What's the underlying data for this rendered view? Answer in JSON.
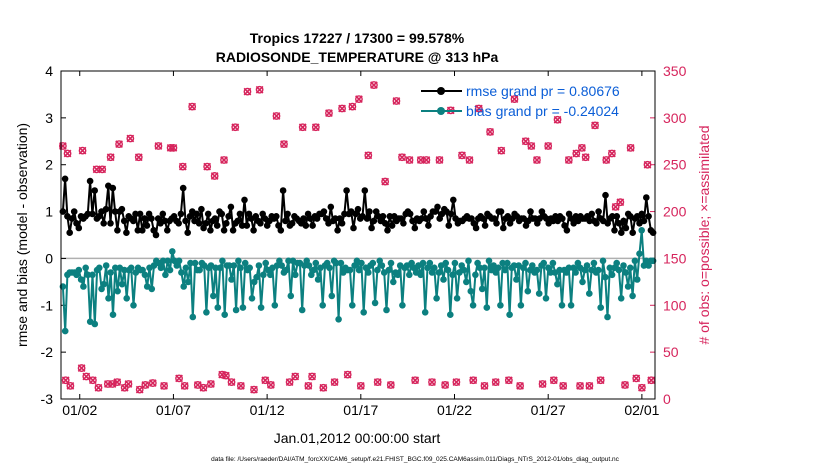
{
  "chart_data": {
    "type": "line",
    "title_line1": "Tropics 17227 / 17300 = 99.578%",
    "title_line2": "RADIOSONDE_TEMPERATURE @ 313 hPa",
    "xlabel": "Jan.01,2012 00:00:00 start",
    "ylabel_left": "rmse and bias (model - observation)",
    "ylabel_right": "# of obs: o=possible; ×=assimilated",
    "footer": "data file: /Users/raeder/DAI/ATM_forcXX/CAM6_setup/f.e21.FHIST_BGC.f09_025.CAM6assim.011/Diags_NTrS_2012-01/obs_diag_output.nc",
    "xlim": [
      0,
      31.7
    ],
    "ylim_left": [
      -3,
      4
    ],
    "ylim_right": [
      0,
      350
    ],
    "x_ticks": [
      {
        "value": 1,
        "label": "01/02"
      },
      {
        "value": 6,
        "label": "01/07"
      },
      {
        "value": 11,
        "label": "01/12"
      },
      {
        "value": 16,
        "label": "01/17"
      },
      {
        "value": 21,
        "label": "01/22"
      },
      {
        "value": 26,
        "label": "01/27"
      },
      {
        "value": 31,
        "label": "02/01"
      }
    ],
    "y_left_ticks": [
      "-3",
      "-2",
      "-1",
      "0",
      "1",
      "2",
      "3",
      "4"
    ],
    "y_right_ticks": [
      "0",
      "50",
      "100",
      "150",
      "200",
      "250",
      "300",
      "350"
    ],
    "legend": [
      {
        "label": "rmse grand pr = 0.80676",
        "color": "#000000"
      },
      {
        "label": "bias grand pr = -0.24024",
        "color": "#008080"
      }
    ],
    "legend_text_color": "#0b5ed7",
    "colors": {
      "rmse": "#000000",
      "bias": "#0c8080",
      "counts": "#d6245c",
      "zero_line": "#b0b0b0"
    },
    "rmse": [
      1.0,
      1.7,
      0.9,
      0.55,
      0.85,
      1.0,
      0.75,
      0.65,
      0.9,
      0.85,
      0.9,
      0.95,
      1.65,
      0.95,
      1.45,
      0.85,
      0.9,
      1.0,
      0.75,
      1.05,
      1.55,
      0.75,
      1.5,
      1.0,
      0.6,
      1.0,
      1.05,
      0.8,
      0.55,
      0.9,
      0.85,
      0.8,
      0.95,
      0.6,
      0.95,
      0.6,
      0.85,
      0.7,
      0.95,
      0.85,
      0.6,
      0.5,
      0.85,
      0.75,
      0.95,
      0.8,
      0.6,
      0.8,
      0.85,
      0.9,
      0.8,
      0.75,
      0.95,
      1.5,
      0.8,
      0.55,
      0.9,
      1.0,
      0.8,
      0.95,
      0.75,
      1.05,
      0.65,
      0.75,
      0.95,
      0.6,
      0.8,
      0.85,
      0.7,
      1.0,
      0.95,
      0.6,
      0.75,
      0.9,
      1.1,
      0.6,
      0.75,
      0.8,
      0.95,
      0.7,
      1.25,
      0.7,
      0.95,
      0.85,
      0.6,
      0.9,
      0.8,
      0.75,
      0.95,
      0.85,
      0.7,
      0.8,
      0.9,
      0.85,
      0.9,
      0.7,
      0.6,
      1.45,
      0.8,
      0.95,
      0.7,
      0.75,
      0.9,
      0.85,
      0.8,
      0.75,
      0.85,
      0.7,
      0.95,
      0.85,
      0.7,
      0.9,
      0.85,
      0.95,
      0.95,
      1.0,
      0.85,
      0.75,
      1.1,
      0.8,
      0.85,
      0.6,
      0.85,
      0.75,
      0.95,
      1.45,
      0.95,
      1.0,
      0.65,
      0.95,
      1.05,
      0.85,
      0.9,
      1.45,
      0.85,
      1.0,
      0.65,
      0.8,
      1.0,
      0.9,
      0.8,
      0.9,
      0.75,
      0.6,
      0.9,
      0.7,
      0.9,
      0.8,
      0.85,
      0.85,
      0.75,
      0.95,
      1.0,
      0.95,
      0.8,
      0.65,
      0.85,
      0.8,
      0.85,
      1.0,
      0.85,
      0.7,
      0.9,
      1.0,
      1.0,
      1.1,
      0.85,
      0.95,
      1.05,
      1.0,
      0.7,
      0.95,
      1.25,
      0.85,
      0.75,
      0.8,
      0.8,
      0.85,
      0.9,
      0.85,
      0.85,
      0.75,
      0.65,
      0.85,
      0.9,
      0.85,
      0.7,
      0.95,
      0.9,
      0.85,
      0.85,
      0.75,
      1.0,
      1.0,
      0.65,
      0.85,
      0.9,
      0.75,
      0.85,
      0.95,
      0.9,
      0.8,
      0.85,
      0.85,
      0.7,
      0.8,
      1.0,
      0.85,
      0.85,
      0.75,
      0.85,
      1.0,
      0.9,
      0.85,
      0.75,
      0.85,
      0.8,
      0.9,
      0.8,
      0.9,
      0.85,
      0.7,
      0.6,
      0.95,
      0.85,
      0.75,
      0.9,
      0.8,
      0.9,
      0.85,
      0.85,
      0.9,
      0.8,
      0.95,
      0.8,
      0.75,
      1.0,
      0.85,
      0.8,
      1.35,
      0.75,
      0.85,
      0.9,
      0.6,
      0.9,
      0.75,
      0.55,
      0.8,
      0.65,
      0.95,
      0.9,
      0.55,
      0.85,
      0.9,
      0.75,
      0.95,
      0.8,
      1.3,
      0.9,
      0.6,
      0.55
    ],
    "bias": [
      -0.6,
      -1.55,
      -0.35,
      -0.3,
      -0.3,
      -0.3,
      -0.35,
      -0.25,
      -0.45,
      -0.6,
      -0.2,
      -0.35,
      -1.35,
      -0.35,
      -1.4,
      -0.25,
      -0.2,
      -0.65,
      -0.55,
      -0.15,
      -0.85,
      -0.3,
      -1.2,
      -0.2,
      -0.7,
      -0.2,
      -0.55,
      -0.25,
      -0.85,
      -0.25,
      -0.2,
      -1.0,
      -0.3,
      -0.2,
      -0.25,
      -0.25,
      -0.35,
      -0.6,
      -0.2,
      -0.65,
      -0.15,
      -0.05,
      -0.1,
      -0.2,
      -0.05,
      -0.35,
      -0.05,
      -0.25,
      0.15,
      -0.05,
      -0.15,
      -0.05,
      -0.3,
      -0.6,
      -0.2,
      -0.5,
      -0.1,
      -1.25,
      -0.1,
      -0.25,
      -0.25,
      -0.1,
      -0.15,
      -1.15,
      -0.2,
      -0.15,
      -0.8,
      -0.2,
      -1.05,
      -0.2,
      -0.05,
      -1.2,
      -0.15,
      -0.15,
      -0.45,
      -0.15,
      -1.1,
      -0.05,
      -0.2,
      -1.05,
      -0.1,
      -0.25,
      -0.2,
      -0.85,
      -0.5,
      -0.4,
      -0.15,
      -1.05,
      -0.35,
      -0.1,
      -0.25,
      -0.35,
      -0.2,
      -1.0,
      -0.15,
      -0.05,
      -0.15,
      -0.3,
      -0.25,
      -0.05,
      -0.8,
      -0.05,
      -0.35,
      -0.1,
      -0.1,
      -1.1,
      -0.15,
      -0.05,
      -0.15,
      -0.35,
      -0.25,
      -0.1,
      -0.45,
      -0.2,
      -1.0,
      -0.15,
      -0.1,
      -0.2,
      -0.8,
      -0.05,
      -0.1,
      -1.3,
      -0.1,
      -0.3,
      -0.2,
      -0.25,
      -0.25,
      -1.0,
      -0.15,
      -0.05,
      -0.25,
      -0.1,
      -1.15,
      -0.2,
      -0.3,
      -0.15,
      -0.1,
      -0.95,
      -0.25,
      -0.05,
      -0.15,
      -0.3,
      -1.1,
      -0.25,
      -0.1,
      -0.5,
      -0.3,
      -0.35,
      -0.15,
      -1.0,
      -0.2,
      -0.15,
      -0.35,
      -0.1,
      -0.2,
      -0.3,
      -0.15,
      -0.35,
      -0.1,
      -1.15,
      -0.2,
      -0.1,
      -0.3,
      -0.2,
      -0.85,
      -0.3,
      -0.15,
      -0.45,
      -0.1,
      -0.25,
      -1.2,
      -0.35,
      -0.1,
      -0.85,
      -0.3,
      -0.15,
      -0.25,
      -0.5,
      -0.05,
      -0.7,
      -1.0,
      -0.35,
      -0.1,
      -0.2,
      -0.65,
      -0.2,
      -1.05,
      -0.05,
      -0.25,
      -0.15,
      -0.3,
      -0.2,
      -1.0,
      -0.1,
      -0.25,
      -0.1,
      -1.2,
      -0.2,
      -0.15,
      -0.45,
      -0.15,
      -1.0,
      -0.2,
      -0.1,
      -0.7,
      -0.25,
      -0.15,
      -0.3,
      -0.25,
      -0.75,
      -0.15,
      -0.1,
      -0.85,
      -0.2,
      -0.3,
      -0.1,
      -0.3,
      -0.55,
      -0.25,
      -1.0,
      -0.25,
      -0.3,
      -0.2,
      -1.0,
      -0.2,
      -0.3,
      -0.1,
      -0.2,
      -0.5,
      -0.25,
      -0.15,
      -0.75,
      -0.25,
      -0.1,
      -0.3,
      -0.25,
      -1.05,
      -0.05,
      -0.4,
      -1.25,
      -0.2,
      -0.35,
      -0.2,
      -0.1,
      -0.25,
      -0.85,
      -0.15,
      -0.3,
      -0.6,
      -0.2,
      -0.8,
      -0.05,
      -0.45,
      0.1,
      0.6,
      -0.15,
      -0.05,
      -0.15,
      -0.05,
      -0.05
    ],
    "counts": [
      20,
      263,
      12,
      258,
      20,
      17,
      15,
      35,
      260,
      28,
      245,
      20,
      248,
      22,
      15,
      265,
      20,
      272,
      23,
      278,
      20,
      250,
      25,
      18,
      278,
      22,
      15,
      268,
      312,
      18,
      248,
      25,
      238,
      20,
      25,
      255,
      15,
      22,
      290,
      25,
      328,
      20,
      330,
      18,
      15,
      302,
      272,
      20,
      30,
      292,
      18,
      25,
      290,
      15,
      305,
      22,
      20,
      310,
      28,
      15,
      325,
      20,
      33,
      18,
      260,
      20,
      335,
      22,
      18,
      232,
      20,
      318,
      25,
      258,
      15,
      255,
      20,
      255,
      22,
      15,
      255,
      20,
      308,
      18,
      25,
      260,
      20,
      255,
      28,
      18,
      310,
      20,
      285,
      15,
      265,
      22,
      20,
      320,
      18,
      25,
      275,
      15,
      270,
      20,
      255,
      22,
      18,
      270,
      20,
      15,
      298,
      25,
      20,
      255,
      18,
      22,
      262,
      20,
      268,
      15,
      25,
      258,
      20,
      20,
      18,
      292,
      20,
      25,
      255,
      18,
      15,
      262,
      20,
      205,
      22,
      25,
      210,
      18,
      15,
      268,
      22,
      20,
      250,
      18
    ],
    "count_markers": [
      {
        "x": 0.1,
        "y": 270
      },
      {
        "x": 0.35,
        "y": 262
      },
      {
        "x": 0.25,
        "y": 20
      },
      {
        "x": 0.5,
        "y": 14
      },
      {
        "x": 1.1,
        "y": 33
      },
      {
        "x": 1.35,
        "y": 24
      },
      {
        "x": 1.15,
        "y": 265
      },
      {
        "x": 1.7,
        "y": 20
      },
      {
        "x": 2.0,
        "y": 12
      },
      {
        "x": 1.9,
        "y": 245
      },
      {
        "x": 2.2,
        "y": 245
      },
      {
        "x": 2.5,
        "y": 16
      },
      {
        "x": 2.75,
        "y": 16
      },
      {
        "x": 2.65,
        "y": 258
      },
      {
        "x": 3.0,
        "y": 18
      },
      {
        "x": 3.1,
        "y": 272
      },
      {
        "x": 3.4,
        "y": 12
      },
      {
        "x": 3.6,
        "y": 16
      },
      {
        "x": 3.7,
        "y": 278
      },
      {
        "x": 4.2,
        "y": 10
      },
      {
        "x": 4.5,
        "y": 15
      },
      {
        "x": 4.15,
        "y": 258
      },
      {
        "x": 4.9,
        "y": 17
      },
      {
        "x": 5.2,
        "y": 270
      },
      {
        "x": 5.5,
        "y": 14
      },
      {
        "x": 5.85,
        "y": 268
      },
      {
        "x": 6.0,
        "y": 268
      },
      {
        "x": 6.3,
        "y": 22
      },
      {
        "x": 6.6,
        "y": 14
      },
      {
        "x": 6.5,
        "y": 248
      },
      {
        "x": 7.0,
        "y": 312
      },
      {
        "x": 7.3,
        "y": 15
      },
      {
        "x": 7.6,
        "y": 12
      },
      {
        "x": 7.8,
        "y": 248
      },
      {
        "x": 8.0,
        "y": 16
      },
      {
        "x": 8.2,
        "y": 238
      },
      {
        "x": 8.6,
        "y": 26
      },
      {
        "x": 8.8,
        "y": 25
      },
      {
        "x": 8.7,
        "y": 255
      },
      {
        "x": 9.1,
        "y": 18
      },
      {
        "x": 9.3,
        "y": 290
      },
      {
        "x": 9.6,
        "y": 14
      },
      {
        "x": 9.95,
        "y": 328
      },
      {
        "x": 10.3,
        "y": 10
      },
      {
        "x": 10.6,
        "y": 330
      },
      {
        "x": 10.9,
        "y": 20
      },
      {
        "x": 11.2,
        "y": 15
      },
      {
        "x": 11.5,
        "y": 302
      },
      {
        "x": 11.9,
        "y": 272
      },
      {
        "x": 12.2,
        "y": 18
      },
      {
        "x": 12.5,
        "y": 24
      },
      {
        "x": 12.9,
        "y": 290
      },
      {
        "x": 13.2,
        "y": 14
      },
      {
        "x": 13.4,
        "y": 24
      },
      {
        "x": 13.6,
        "y": 290
      },
      {
        "x": 14.0,
        "y": 12
      },
      {
        "x": 14.3,
        "y": 305
      },
      {
        "x": 14.6,
        "y": 18
      },
      {
        "x": 15.0,
        "y": 310
      },
      {
        "x": 15.3,
        "y": 26
      },
      {
        "x": 15.55,
        "y": 312
      },
      {
        "x": 15.9,
        "y": 320
      },
      {
        "x": 16.0,
        "y": 14
      },
      {
        "x": 16.4,
        "y": 260
      },
      {
        "x": 16.7,
        "y": 335
      },
      {
        "x": 16.9,
        "y": 18
      },
      {
        "x": 17.3,
        "y": 232
      },
      {
        "x": 17.6,
        "y": 15
      },
      {
        "x": 17.9,
        "y": 318
      },
      {
        "x": 18.2,
        "y": 258
      },
      {
        "x": 18.6,
        "y": 255
      },
      {
        "x": 18.9,
        "y": 20
      },
      {
        "x": 19.2,
        "y": 255
      },
      {
        "x": 19.5,
        "y": 255
      },
      {
        "x": 19.8,
        "y": 18
      },
      {
        "x": 20.2,
        "y": 255
      },
      {
        "x": 20.5,
        "y": 15
      },
      {
        "x": 20.8,
        "y": 308
      },
      {
        "x": 21.1,
        "y": 18
      },
      {
        "x": 21.4,
        "y": 260
      },
      {
        "x": 21.8,
        "y": 255
      },
      {
        "x": 22.0,
        "y": 20
      },
      {
        "x": 22.3,
        "y": 310
      },
      {
        "x": 22.6,
        "y": 14
      },
      {
        "x": 22.9,
        "y": 285
      },
      {
        "x": 23.2,
        "y": 18
      },
      {
        "x": 23.5,
        "y": 265
      },
      {
        "x": 23.9,
        "y": 20
      },
      {
        "x": 24.2,
        "y": 320
      },
      {
        "x": 24.5,
        "y": 14
      },
      {
        "x": 24.8,
        "y": 275
      },
      {
        "x": 25.1,
        "y": 270
      },
      {
        "x": 25.4,
        "y": 255
      },
      {
        "x": 25.7,
        "y": 16
      },
      {
        "x": 26.0,
        "y": 270
      },
      {
        "x": 26.3,
        "y": 20
      },
      {
        "x": 26.5,
        "y": 298
      },
      {
        "x": 26.8,
        "y": 14
      },
      {
        "x": 27.1,
        "y": 255
      },
      {
        "x": 27.5,
        "y": 262
      },
      {
        "x": 27.8,
        "y": 268
      },
      {
        "x": 27.7,
        "y": 14
      },
      {
        "x": 28.0,
        "y": 258
      },
      {
        "x": 28.2,
        "y": 14
      },
      {
        "x": 28.5,
        "y": 292
      },
      {
        "x": 28.8,
        "y": 20
      },
      {
        "x": 29.1,
        "y": 255
      },
      {
        "x": 29.4,
        "y": 262
      },
      {
        "x": 29.6,
        "y": 205
      },
      {
        "x": 29.85,
        "y": 210
      },
      {
        "x": 30.1,
        "y": 15
      },
      {
        "x": 30.4,
        "y": 268
      },
      {
        "x": 30.7,
        "y": 22
      },
      {
        "x": 31.0,
        "y": 12
      },
      {
        "x": 31.3,
        "y": 250
      },
      {
        "x": 31.5,
        "y": 20
      }
    ]
  }
}
